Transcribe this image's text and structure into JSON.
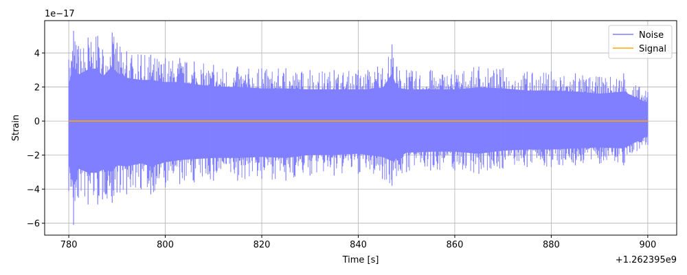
{
  "chart_data": {
    "type": "line",
    "title": "",
    "xlabel": "Time [s]",
    "ylabel": "Strain",
    "x_offset_label": "+1.262395e9",
    "y_scale_label": "1e−17",
    "xlim": [
      775,
      906
    ],
    "ylim": [
      -6.7,
      5.9
    ],
    "x_ticks": [
      780,
      800,
      820,
      840,
      860,
      880,
      900
    ],
    "y_ticks": [
      -6,
      -4,
      -2,
      0,
      2,
      4
    ],
    "x_tick_labels": [
      "780",
      "800",
      "820",
      "840",
      "860",
      "880",
      "900"
    ],
    "y_tick_labels": [
      "−6",
      "−4",
      "−2",
      "0",
      "2",
      "4"
    ],
    "grid": true,
    "legend_position": "top-right",
    "series": [
      {
        "name": "Noise",
        "color": "#7f7fff",
        "x_start": 780,
        "x_end": 900,
        "envelope_upper": [
          [
            780,
            3.6
          ],
          [
            781,
            5.3
          ],
          [
            782,
            4.4
          ],
          [
            784,
            4.9
          ],
          [
            786,
            5.0
          ],
          [
            787,
            4.2
          ],
          [
            789,
            5.2
          ],
          [
            790,
            4.6
          ],
          [
            792,
            4.1
          ],
          [
            795,
            3.9
          ],
          [
            797,
            3.9
          ],
          [
            800,
            3.7
          ],
          [
            803,
            3.7
          ],
          [
            806,
            3.5
          ],
          [
            810,
            3.3
          ],
          [
            815,
            3.2
          ],
          [
            820,
            3.1
          ],
          [
            825,
            3.1
          ],
          [
            830,
            3.0
          ],
          [
            835,
            3.0
          ],
          [
            840,
            3.0
          ],
          [
            842,
            3.0
          ],
          [
            844,
            3.2
          ],
          [
            845,
            3.1
          ],
          [
            847,
            4.5
          ],
          [
            848,
            3.2
          ],
          [
            850,
            3.0
          ],
          [
            855,
            3.0
          ],
          [
            860,
            3.0
          ],
          [
            865,
            3.2
          ],
          [
            870,
            3.1
          ],
          [
            875,
            2.9
          ],
          [
            880,
            2.9
          ],
          [
            885,
            2.8
          ],
          [
            890,
            2.6
          ],
          [
            895,
            2.8
          ],
          [
            900,
            1.7
          ]
        ],
        "envelope_lower": [
          [
            780,
            -4.1
          ],
          [
            781,
            -6.1
          ],
          [
            782,
            -4.5
          ],
          [
            784,
            -4.9
          ],
          [
            786,
            -4.9
          ],
          [
            787,
            -4.6
          ],
          [
            789,
            -4.8
          ],
          [
            790,
            -4.2
          ],
          [
            792,
            -4.3
          ],
          [
            795,
            -4.0
          ],
          [
            797,
            -4.3
          ],
          [
            800,
            -3.9
          ],
          [
            803,
            -3.7
          ],
          [
            806,
            -3.6
          ],
          [
            810,
            -3.5
          ],
          [
            815,
            -3.5
          ],
          [
            820,
            -3.4
          ],
          [
            825,
            -3.5
          ],
          [
            830,
            -3.2
          ],
          [
            835,
            -3.2
          ],
          [
            840,
            -3.1
          ],
          [
            845,
            -3.4
          ],
          [
            847,
            -3.8
          ],
          [
            850,
            -3.0
          ],
          [
            855,
            -2.9
          ],
          [
            860,
            -2.9
          ],
          [
            865,
            -3.1
          ],
          [
            870,
            -2.8
          ],
          [
            875,
            -2.7
          ],
          [
            880,
            -2.7
          ],
          [
            885,
            -2.6
          ],
          [
            890,
            -2.5
          ],
          [
            895,
            -2.6
          ],
          [
            900,
            -1.4
          ]
        ]
      },
      {
        "name": "Signal",
        "color": "#ffa500",
        "x": [
          780,
          900
        ],
        "values": [
          0,
          0
        ]
      }
    ]
  }
}
